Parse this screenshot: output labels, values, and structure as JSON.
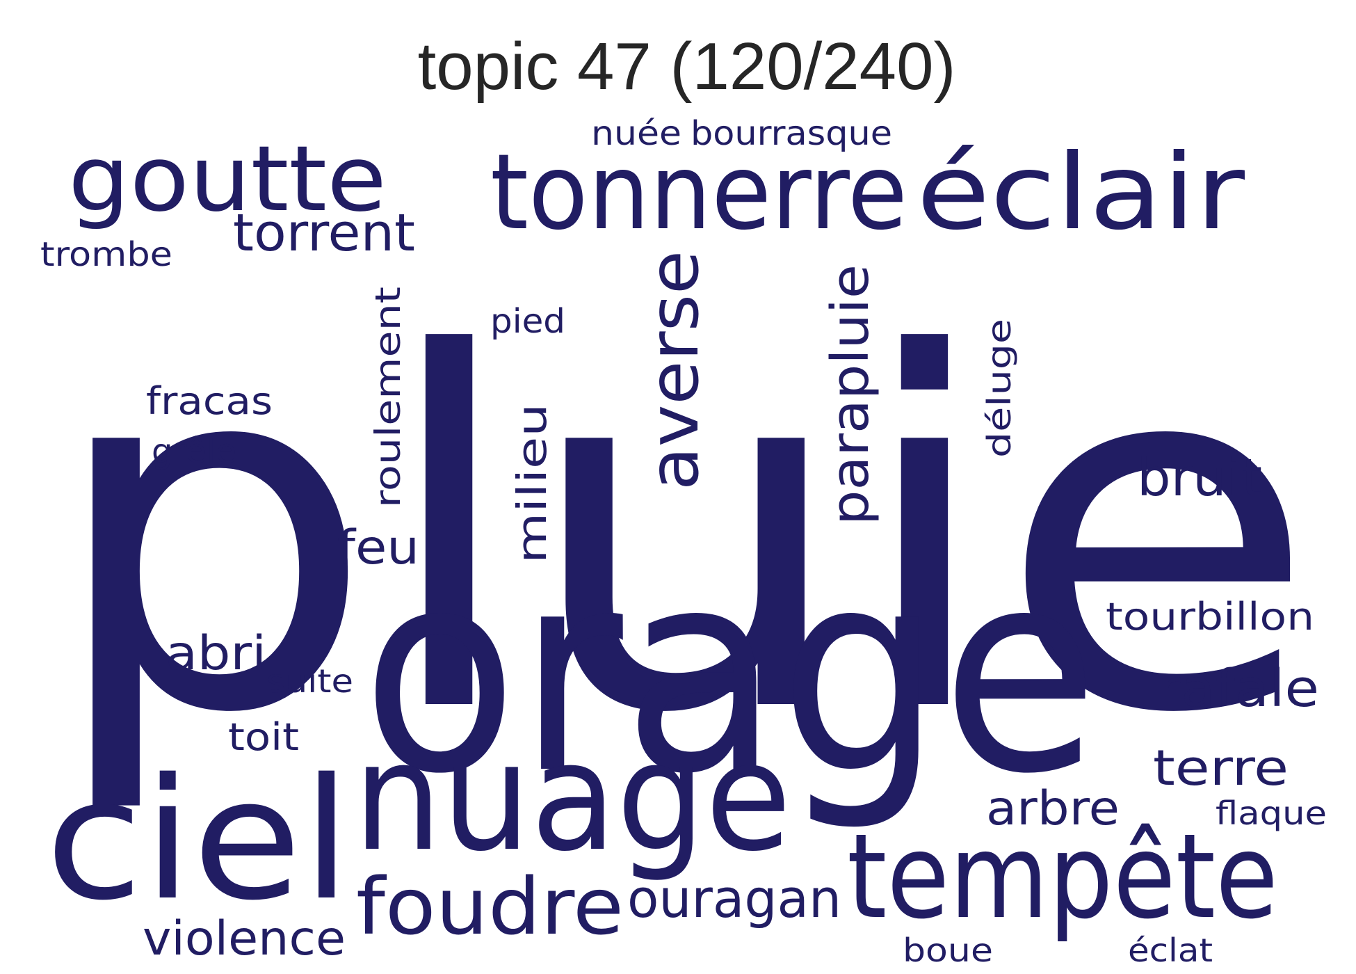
{
  "title": "topic 47 (120/240)",
  "color": "#211d63",
  "words": {
    "pluie": "pluie",
    "orage": "orage",
    "ciel": "ciel",
    "nuage": "nuage",
    "tempete": "tempête",
    "tonnerre": "tonnerre",
    "eclair": "éclair",
    "goutte": "goutte",
    "foudre": "foudre",
    "ouragan": "ouragan",
    "averse": "averse",
    "parapluie": "parapluie",
    "torrent": "torrent",
    "bruit": "bruit",
    "rafale": "rafale",
    "terre": "terre",
    "arbre": "arbre",
    "violence": "violence",
    "abri": "abri",
    "feu": "feu",
    "tourbillon": "tourbillon",
    "fracas": "fracas",
    "milieu": "milieu",
    "roulement": "roulement",
    "nuee": "nuée",
    "bourrasque": "bourrasque",
    "trombe": "trombe",
    "pied": "pied",
    "deluge": "déluge",
    "grele": "grêle",
    "suite": "suite",
    "toit": "toit",
    "flaque": "flaque",
    "boue": "boue",
    "eclat": "éclat"
  }
}
